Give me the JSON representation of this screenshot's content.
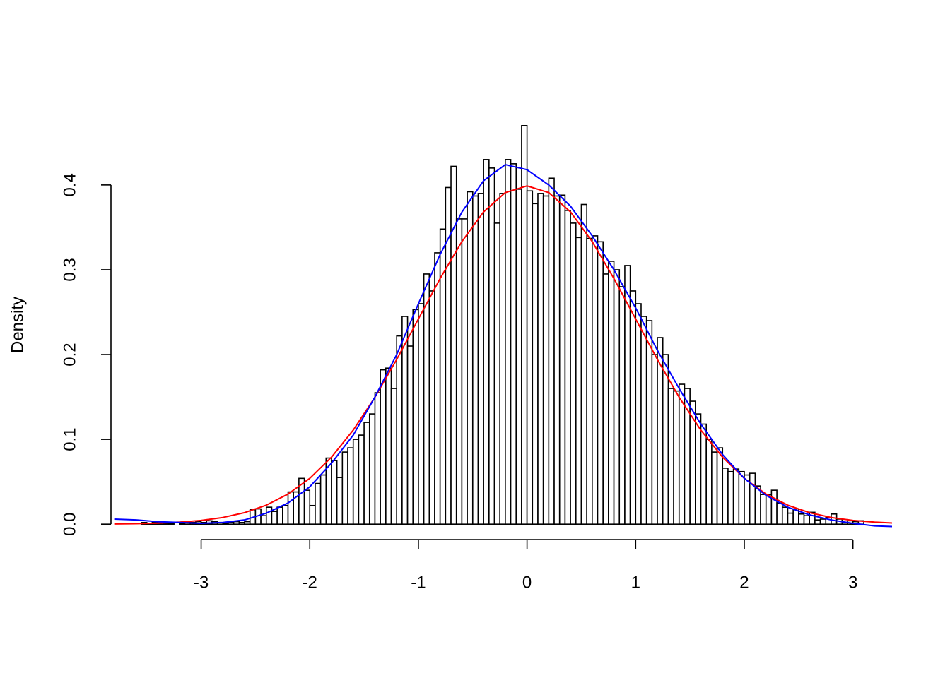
{
  "chart_data": {
    "type": "histogram",
    "y_label": "Density",
    "bins": [
      -3.55,
      -3.5,
      -3.45,
      -3.4,
      -3.35,
      -3.3,
      -3.25,
      -3.2,
      -3.15,
      -3.1,
      -3.05,
      -3,
      -2.95,
      -2.9,
      -2.85,
      -2.8,
      -2.75,
      -2.7,
      -2.65,
      -2.6,
      -2.55,
      -2.5,
      -2.45,
      -2.4,
      -2.35,
      -2.3,
      -2.25,
      -2.2,
      -2.15,
      -2.1,
      -2.05,
      -2,
      -1.95,
      -1.9,
      -1.85,
      -1.8,
      -1.75,
      -1.7,
      -1.65,
      -1.6,
      -1.55,
      -1.5,
      -1.45,
      -1.4,
      -1.35,
      -1.3,
      -1.25,
      -1.2,
      -1.15,
      -1.1,
      -1.05,
      -1,
      -0.95,
      -0.9,
      -0.85,
      -0.8,
      -0.75,
      -0.7,
      -0.65,
      -0.6,
      -0.55,
      -0.5,
      -0.45,
      -0.4,
      -0.35,
      -0.3,
      -0.25,
      -0.2,
      -0.15,
      -0.1,
      -0.05,
      0,
      0.05,
      0.1,
      0.15,
      0.2,
      0.25,
      0.3,
      0.35,
      0.4,
      0.45,
      0.5,
      0.55,
      0.6,
      0.65,
      0.7,
      0.75,
      0.8,
      0.85,
      0.9,
      0.95,
      1,
      1.05,
      1.1,
      1.15,
      1.2,
      1.25,
      1.3,
      1.35,
      1.4,
      1.45,
      1.5,
      1.55,
      1.6,
      1.65,
      1.7,
      1.75,
      1.8,
      1.85,
      1.9,
      1.95,
      2,
      2.05,
      2.1,
      2.15,
      2.2,
      2.25,
      2.3,
      2.35,
      2.4,
      2.45,
      2.5,
      2.55,
      2.6,
      2.65,
      2.7,
      2.75,
      2.8,
      2.85,
      2.9,
      2.95,
      3,
      3.05,
      3.1
    ],
    "values": [
      0.002,
      0.001,
      0.002,
      0.002,
      0.001,
      0.001,
      0,
      0.001,
      0.002,
      0.002,
      0.003,
      0.002,
      0.004,
      0.003,
      0.002,
      0.001,
      0.002,
      0.003,
      0.002,
      0.003,
      0.017,
      0.018,
      0.01,
      0.02,
      0.015,
      0.02,
      0.022,
      0.038,
      0.038,
      0.054,
      0.04,
      0.022,
      0.048,
      0.058,
      0.078,
      0.075,
      0.055,
      0.085,
      0.09,
      0.1,
      0.105,
      0.12,
      0.13,
      0.155,
      0.182,
      0.184,
      0.16,
      0.222,
      0.245,
      0.21,
      0.253,
      0.26,
      0.295,
      0.275,
      0.32,
      0.348,
      0.397,
      0.422,
      0.36,
      0.36,
      0.392,
      0.387,
      0.39,
      0.43,
      0.42,
      0.355,
      0.39,
      0.43,
      0.425,
      0.395,
      0.47,
      0.393,
      0.378,
      0.39,
      0.387,
      0.408,
      0.387,
      0.388,
      0.37,
      0.355,
      0.338,
      0.377,
      0.337,
      0.34,
      0.333,
      0.295,
      0.31,
      0.3,
      0.28,
      0.305,
      0.275,
      0.26,
      0.245,
      0.24,
      0.2,
      0.22,
      0.2,
      0.16,
      0.157,
      0.165,
      0.16,
      0.145,
      0.13,
      0.118,
      0.1,
      0.085,
      0.09,
      0.066,
      0.062,
      0.065,
      0.062,
      0.058,
      0.06,
      0.045,
      0.035,
      0.035,
      0.04,
      0.025,
      0.02,
      0.013,
      0.018,
      0.012,
      0.01,
      0.014,
      0.005,
      0.006,
      0.008,
      0.012,
      0.006,
      0.002,
      0.004,
      0.003,
      0.004
    ],
    "bar_fill": "#ffffff",
    "bar_stroke": "#000000",
    "lines": [
      {
        "color": "#ff0000",
        "x": [
          -3.8,
          -3.6,
          -3.4,
          -3.2,
          -3,
          -2.8,
          -2.6,
          -2.4,
          -2.2,
          -2,
          -1.8,
          -1.6,
          -1.4,
          -1.2,
          -1,
          -0.8,
          -0.6,
          -0.4,
          -0.2,
          0,
          0.2,
          0.4,
          0.6,
          0.8,
          1,
          1.2,
          1.4,
          1.6,
          1.8,
          2,
          2.2,
          2.4,
          2.6,
          2.8,
          3,
          3.2,
          3.4
        ],
        "values": [
          0.0003,
          0.0006,
          0.0012,
          0.0024,
          0.0044,
          0.0079,
          0.0136,
          0.0224,
          0.0355,
          0.054,
          0.079,
          0.1109,
          0.1497,
          0.1942,
          0.242,
          0.2897,
          0.3332,
          0.3683,
          0.391,
          0.3989,
          0.391,
          0.3683,
          0.3332,
          0.2897,
          0.242,
          0.1942,
          0.1497,
          0.1109,
          0.079,
          0.054,
          0.0355,
          0.0224,
          0.0136,
          0.0079,
          0.0044,
          0.0024,
          0.0012
        ]
      },
      {
        "color": "#0000ff",
        "x": [
          -3.8,
          -3.6,
          -3.4,
          -3.2,
          -3,
          -2.8,
          -2.6,
          -2.4,
          -2.2,
          -2,
          -1.8,
          -1.6,
          -1.4,
          -1.2,
          -1,
          -0.8,
          -0.6,
          -0.4,
          -0.2,
          0,
          0.2,
          0.4,
          0.6,
          0.8,
          1,
          1.2,
          1.4,
          1.6,
          1.8,
          2,
          2.2,
          2.4,
          2.6,
          2.8,
          3,
          3.2,
          3.4
        ],
        "values": [
          0.006,
          0.005,
          0.003,
          0.002,
          0.001,
          0.002,
          0.005,
          0.013,
          0.025,
          0.044,
          0.072,
          0.105,
          0.15,
          0.2,
          0.26,
          0.318,
          0.368,
          0.405,
          0.424,
          0.418,
          0.4,
          0.375,
          0.34,
          0.3,
          0.255,
          0.205,
          0.16,
          0.118,
          0.082,
          0.054,
          0.034,
          0.02,
          0.011,
          0.005,
          0.001,
          -0.002,
          -0.003
        ]
      }
    ],
    "xlim": [
      -3.83,
      3.36
    ],
    "ylim": [
      -0.019,
      0.489
    ],
    "xticks": [
      -3,
      -2,
      -1,
      0,
      1,
      2,
      3
    ],
    "yticks": [
      {
        "value": 0,
        "label": "0.0"
      },
      0.1,
      0.2,
      0.3,
      0.4
    ]
  }
}
